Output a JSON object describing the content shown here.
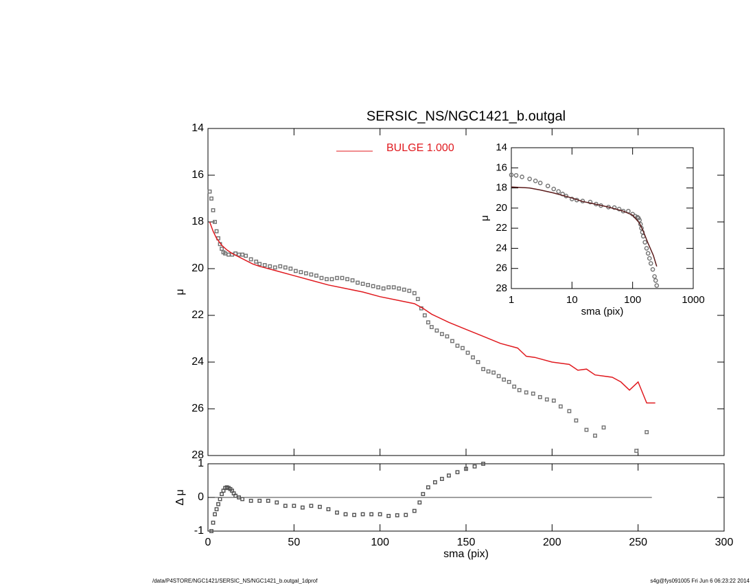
{
  "footer": {
    "left": "/data/P4STORE/NGC1421/SERSIC_NS/NGC1421_b.outgal_1dprof",
    "right": "s4g@fys091005  Fri Jun  6 06:23:22 2014"
  },
  "chart_data": [
    {
      "type": "scatter",
      "title": "SERSIC_NS/NGC1421_b.outgal",
      "ylabel": "μ",
      "xlim": [
        0,
        300
      ],
      "ylim": [
        14,
        28
      ],
      "yticks": [
        14,
        16,
        18,
        20,
        22,
        24,
        26,
        28
      ],
      "y_inverted": true,
      "series": [
        {
          "color": "#707070",
          "marker": "square",
          "x": [
            1,
            2,
            3,
            4,
            5,
            6,
            7,
            8,
            9,
            10,
            12,
            14,
            16,
            18,
            20,
            22,
            25,
            28,
            30,
            33,
            36,
            39,
            42,
            45,
            48,
            51,
            54,
            57,
            60,
            63,
            66,
            69,
            72,
            75,
            78,
            81,
            84,
            87,
            90,
            93,
            96,
            99,
            102,
            105,
            108,
            111,
            114,
            117,
            120,
            122,
            124,
            126,
            128,
            130,
            133,
            136,
            139,
            142,
            145,
            148,
            151,
            154,
            157,
            160,
            163,
            166,
            169,
            172,
            175,
            178,
            181,
            185,
            189,
            193,
            197,
            201,
            205,
            210,
            214,
            220,
            225,
            230,
            249,
            255
          ],
          "values": [
            16.7,
            17.0,
            17.5,
            18.0,
            18.4,
            18.7,
            18.95,
            19.15,
            19.3,
            19.35,
            19.4,
            19.4,
            19.35,
            19.4,
            19.4,
            19.45,
            19.6,
            19.7,
            19.8,
            19.85,
            19.9,
            19.95,
            19.9,
            19.95,
            20.0,
            20.1,
            20.15,
            20.2,
            20.25,
            20.3,
            20.4,
            20.45,
            20.45,
            20.4,
            20.4,
            20.45,
            20.5,
            20.6,
            20.65,
            20.7,
            20.75,
            20.8,
            20.85,
            20.8,
            20.8,
            20.85,
            20.9,
            20.95,
            21.05,
            21.3,
            21.7,
            22.0,
            22.3,
            22.5,
            22.65,
            22.8,
            22.9,
            23.1,
            23.3,
            23.4,
            23.6,
            23.8,
            24.0,
            24.3,
            24.4,
            24.45,
            24.6,
            24.75,
            24.85,
            25.05,
            25.2,
            25.3,
            25.35,
            25.5,
            25.6,
            25.65,
            25.9,
            26.1,
            26.5,
            26.9,
            27.15,
            26.8,
            27.8,
            27.0
          ]
        },
        {
          "name": "BULGE  1.000",
          "color": "#e0191e",
          "marker": "line",
          "x": [
            1,
            3,
            5,
            8,
            11,
            14,
            18,
            22,
            26,
            30,
            40,
            50,
            60,
            70,
            80,
            90,
            100,
            110,
            120,
            125,
            130,
            140,
            150,
            160,
            170,
            180,
            185,
            190,
            200,
            210,
            215,
            220,
            225,
            235,
            240,
            245,
            250,
            255,
            260
          ],
          "values": [
            18.0,
            18.4,
            18.7,
            19.0,
            19.2,
            19.35,
            19.5,
            19.65,
            19.8,
            19.9,
            20.1,
            20.3,
            20.5,
            20.7,
            20.85,
            21.0,
            21.2,
            21.35,
            21.5,
            21.7,
            21.95,
            22.3,
            22.6,
            22.9,
            23.2,
            23.4,
            23.75,
            23.8,
            24.0,
            24.1,
            24.35,
            24.3,
            24.55,
            24.65,
            24.85,
            25.2,
            24.85,
            25.75,
            25.75
          ]
        }
      ]
    },
    {
      "type": "scatter",
      "ylabel": "Δ μ",
      "xlabel": "sma (pix)",
      "xlim": [
        0,
        300
      ],
      "xticks": [
        0,
        50,
        100,
        150,
        200,
        250,
        300
      ],
      "ylim": [
        -1,
        1
      ],
      "yticks": [
        -1,
        0,
        1
      ],
      "hline": 0,
      "hline_xlim": [
        0,
        258
      ],
      "series": [
        {
          "color": "#505050",
          "marker": "square",
          "x": [
            2,
            3,
            4,
            5,
            6,
            7,
            8,
            9,
            10,
            11,
            12,
            13,
            14,
            15,
            16,
            18,
            20,
            25,
            30,
            35,
            40,
            45,
            50,
            55,
            60,
            65,
            70,
            75,
            80,
            85,
            90,
            95,
            100,
            105,
            110,
            115,
            120,
            123,
            125,
            128,
            132,
            136,
            140,
            145,
            150,
            155,
            160
          ],
          "values": [
            -1.0,
            -0.75,
            -0.5,
            -0.35,
            -0.2,
            -0.05,
            0.1,
            0.2,
            0.28,
            0.3,
            0.28,
            0.25,
            0.2,
            0.12,
            0.05,
            0.0,
            -0.05,
            -0.1,
            -0.1,
            -0.1,
            -0.15,
            -0.25,
            -0.25,
            -0.3,
            -0.25,
            -0.28,
            -0.35,
            -0.45,
            -0.5,
            -0.52,
            -0.5,
            -0.5,
            -0.5,
            -0.55,
            -0.53,
            -0.52,
            -0.4,
            -0.15,
            0.1,
            0.3,
            0.45,
            0.55,
            0.65,
            0.75,
            0.85,
            0.92,
            1.0
          ]
        }
      ]
    },
    {
      "type": "scatter",
      "ylabel": "μ",
      "xlabel": "sma (pix)",
      "log_x": true,
      "xlim": [
        1,
        1000
      ],
      "xticks": [
        1,
        10,
        100,
        1000
      ],
      "ylim": [
        14,
        28
      ],
      "yticks": [
        14,
        16,
        18,
        20,
        22,
        24,
        26,
        28
      ],
      "y_inverted": true,
      "series": [
        {
          "color": "#707070",
          "marker": "circle",
          "x": [
            1,
            1.2,
            1.5,
            2,
            2.5,
            3,
            4,
            5,
            6,
            7,
            8,
            10,
            12,
            15,
            20,
            25,
            30,
            40,
            50,
            60,
            70,
            85,
            100,
            110,
            120,
            125,
            130,
            135,
            140,
            145,
            150,
            160,
            170,
            180,
            190,
            200,
            215,
            230,
            240,
            250
          ],
          "values": [
            16.7,
            16.75,
            16.9,
            17.1,
            17.3,
            17.5,
            17.8,
            18.1,
            18.35,
            18.6,
            18.8,
            19.1,
            19.2,
            19.3,
            19.4,
            19.6,
            19.75,
            19.9,
            19.95,
            20.1,
            20.3,
            20.3,
            20.6,
            20.8,
            20.9,
            21.0,
            21.2,
            21.6,
            22.0,
            22.4,
            22.8,
            23.4,
            24.0,
            24.5,
            25.0,
            25.5,
            26.1,
            26.8,
            27.2,
            27.7
          ]
        },
        {
          "color": "#5a1a1a",
          "marker": "line",
          "x": [
            1,
            2,
            3,
            5,
            10,
            15,
            20,
            40,
            70,
            100,
            130,
            150,
            180,
            220,
            250
          ],
          "values": [
            17.9,
            18.0,
            18.2,
            18.5,
            19.0,
            19.35,
            19.5,
            19.9,
            20.3,
            20.7,
            21.5,
            22.3,
            23.5,
            24.7,
            25.8
          ]
        }
      ]
    }
  ]
}
